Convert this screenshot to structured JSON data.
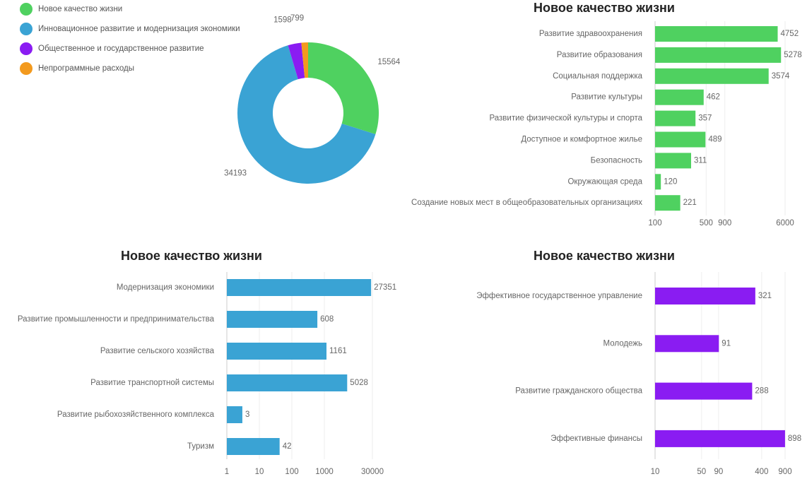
{
  "chart_data": [
    {
      "type": "pie",
      "donut": true,
      "categories": [
        "Новое качество жизни",
        "Инновационное развитие и модернизация экономики",
        "Общественное и государственное развитие",
        "Непрограммные расходы"
      ],
      "values": [
        15564,
        34193,
        1598,
        799
      ],
      "colors": [
        "#4fd160",
        "#3aa3d4",
        "#8a1cf2",
        "#f39a1e"
      ]
    },
    {
      "type": "hbar",
      "title": "Новое качество жизни",
      "log_scale": true,
      "grid": true,
      "color": "#4fd160",
      "categories": [
        "Развитие здравоохранения",
        "Развитие образования",
        "Социальная поддержка",
        "Развитие культуры",
        "Развитие физической культуры и спорта",
        "Доступное и комфортное жилье",
        "Безопасность",
        "Окружающая среда",
        "Создание новых мест в общеобразовательных организациях"
      ],
      "values": [
        4752,
        5278,
        3574,
        462,
        357,
        489,
        311,
        120,
        221
      ],
      "xlim": [
        100,
        6000
      ],
      "xticks": [
        100,
        500,
        900,
        6000
      ]
    },
    {
      "type": "hbar",
      "title": "Новое качество жизни",
      "log_scale": true,
      "grid": true,
      "color": "#3aa3d4",
      "categories": [
        "Модернизация экономики",
        "Развитие промышленности  и предпринимательства",
        "Развитие сельского хозяйства",
        "Развитие транспортной системы",
        "Развитие рыбохозяйственного комплекса",
        "Туризм"
      ],
      "values": [
        27351,
        608,
        1161,
        5028,
        3,
        42
      ],
      "xlim": [
        1,
        30000
      ],
      "xticks": [
        1,
        10,
        100,
        1000,
        30000
      ]
    },
    {
      "type": "hbar",
      "title": "Новое качество жизни",
      "log_scale": true,
      "grid": true,
      "color": "#8a1cf2",
      "categories": [
        "Эффективное государственное управление",
        "Молодежь",
        "Развитие гражданского общества",
        "Эффективные финансы"
      ],
      "values": [
        321,
        91,
        288,
        898
      ],
      "xlim": [
        10,
        900
      ],
      "xticks": [
        10,
        50,
        90,
        400,
        900
      ]
    }
  ]
}
